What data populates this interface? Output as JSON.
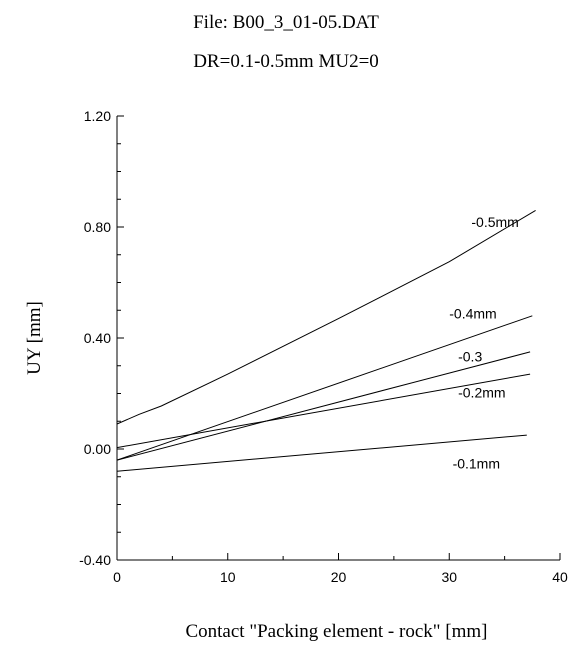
{
  "header": {
    "title": "File: B00_3_01-05.DAT",
    "subtitle": "DR=0.1-0.5mm  MU2=0"
  },
  "chart_data": {
    "type": "line",
    "title": "File: B00_3_01-05.DAT",
    "subtitle": "DR=0.1-0.5mm  MU2=0",
    "xlabel": "Contact \"Packing element - rock\" [mm]",
    "ylabel": "UY [mm]",
    "xlim": [
      0,
      40
    ],
    "ylim": [
      -0.4,
      1.2
    ],
    "xticks": [
      0,
      10,
      20,
      30,
      40
    ],
    "xtick_labels": [
      "0",
      "10",
      "20",
      "30",
      "40"
    ],
    "yticks": [
      -0.4,
      0,
      0.4,
      0.8,
      1.2
    ],
    "ytick_labels": [
      "-0.40",
      "0.00",
      "0.40",
      "0.80",
      "1.20"
    ],
    "grid": false,
    "legend": "none",
    "series": [
      {
        "name": "-0.5mm",
        "x": [
          0,
          2,
          4,
          10,
          20,
          30,
          37.8
        ],
        "y": [
          0.09,
          0.125,
          0.155,
          0.27,
          0.47,
          0.675,
          0.86
        ]
      },
      {
        "name": "-0.4mm",
        "x": [
          0,
          37.5
        ],
        "y": [
          -0.04,
          0.48
        ]
      },
      {
        "name": "-0.3",
        "x": [
          0,
          37.3
        ],
        "y": [
          -0.04,
          0.35
        ]
      },
      {
        "name": "-0.2mm",
        "x": [
          0,
          37.3
        ],
        "y": [
          0.005,
          0.27
        ]
      },
      {
        "name": "-0.1mm",
        "x": [
          0,
          37
        ],
        "y": [
          -0.08,
          0.05
        ]
      }
    ],
    "annotations": [
      {
        "text": "-0.5mm",
        "x": 32,
        "y": 0.8
      },
      {
        "text": "-0.4mm",
        "x": 30,
        "y": 0.47
      },
      {
        "text": "-0.3",
        "x": 30.8,
        "y": 0.315
      },
      {
        "text": "-0.2mm",
        "x": 30.8,
        "y": 0.185
      },
      {
        "text": "-0.1mm",
        "x": 30.3,
        "y": -0.07
      }
    ]
  }
}
